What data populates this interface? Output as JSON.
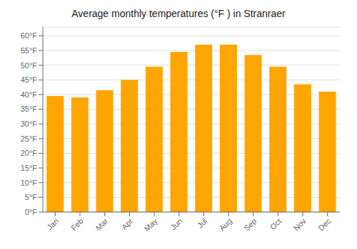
{
  "chart_data": {
    "type": "bar",
    "title": "Average monthly temperatures (°F ) in Stranraer",
    "categories": [
      "Jan",
      "Feb",
      "Mar",
      "Apr",
      "May",
      "Jun",
      "Jul",
      "Aug",
      "Sep",
      "Oct",
      "Nov",
      "Dec"
    ],
    "values": [
      39.5,
      39.0,
      41.5,
      45.0,
      49.5,
      54.5,
      57.0,
      57.0,
      53.5,
      49.5,
      43.5,
      41.0
    ],
    "color": "#FFA500",
    "ylim": [
      0,
      63
    ],
    "yticks": [
      {
        "value": 0,
        "label": "0°F"
      },
      {
        "value": 5,
        "label": "5°F"
      },
      {
        "value": 10,
        "label": "10°F"
      },
      {
        "value": 15,
        "label": "15°F"
      },
      {
        "value": 20,
        "label": "20°F"
      },
      {
        "value": 25,
        "label": "25°F"
      },
      {
        "value": 30,
        "label": "30°F"
      },
      {
        "value": 35,
        "label": "35°F"
      },
      {
        "value": 40,
        "label": "40°F"
      },
      {
        "value": 45,
        "label": "45°F"
      },
      {
        "value": 50,
        "label": "50°F"
      },
      {
        "value": 55,
        "label": "55°F"
      },
      {
        "value": 60,
        "label": "60°F"
      }
    ],
    "grid": true
  }
}
